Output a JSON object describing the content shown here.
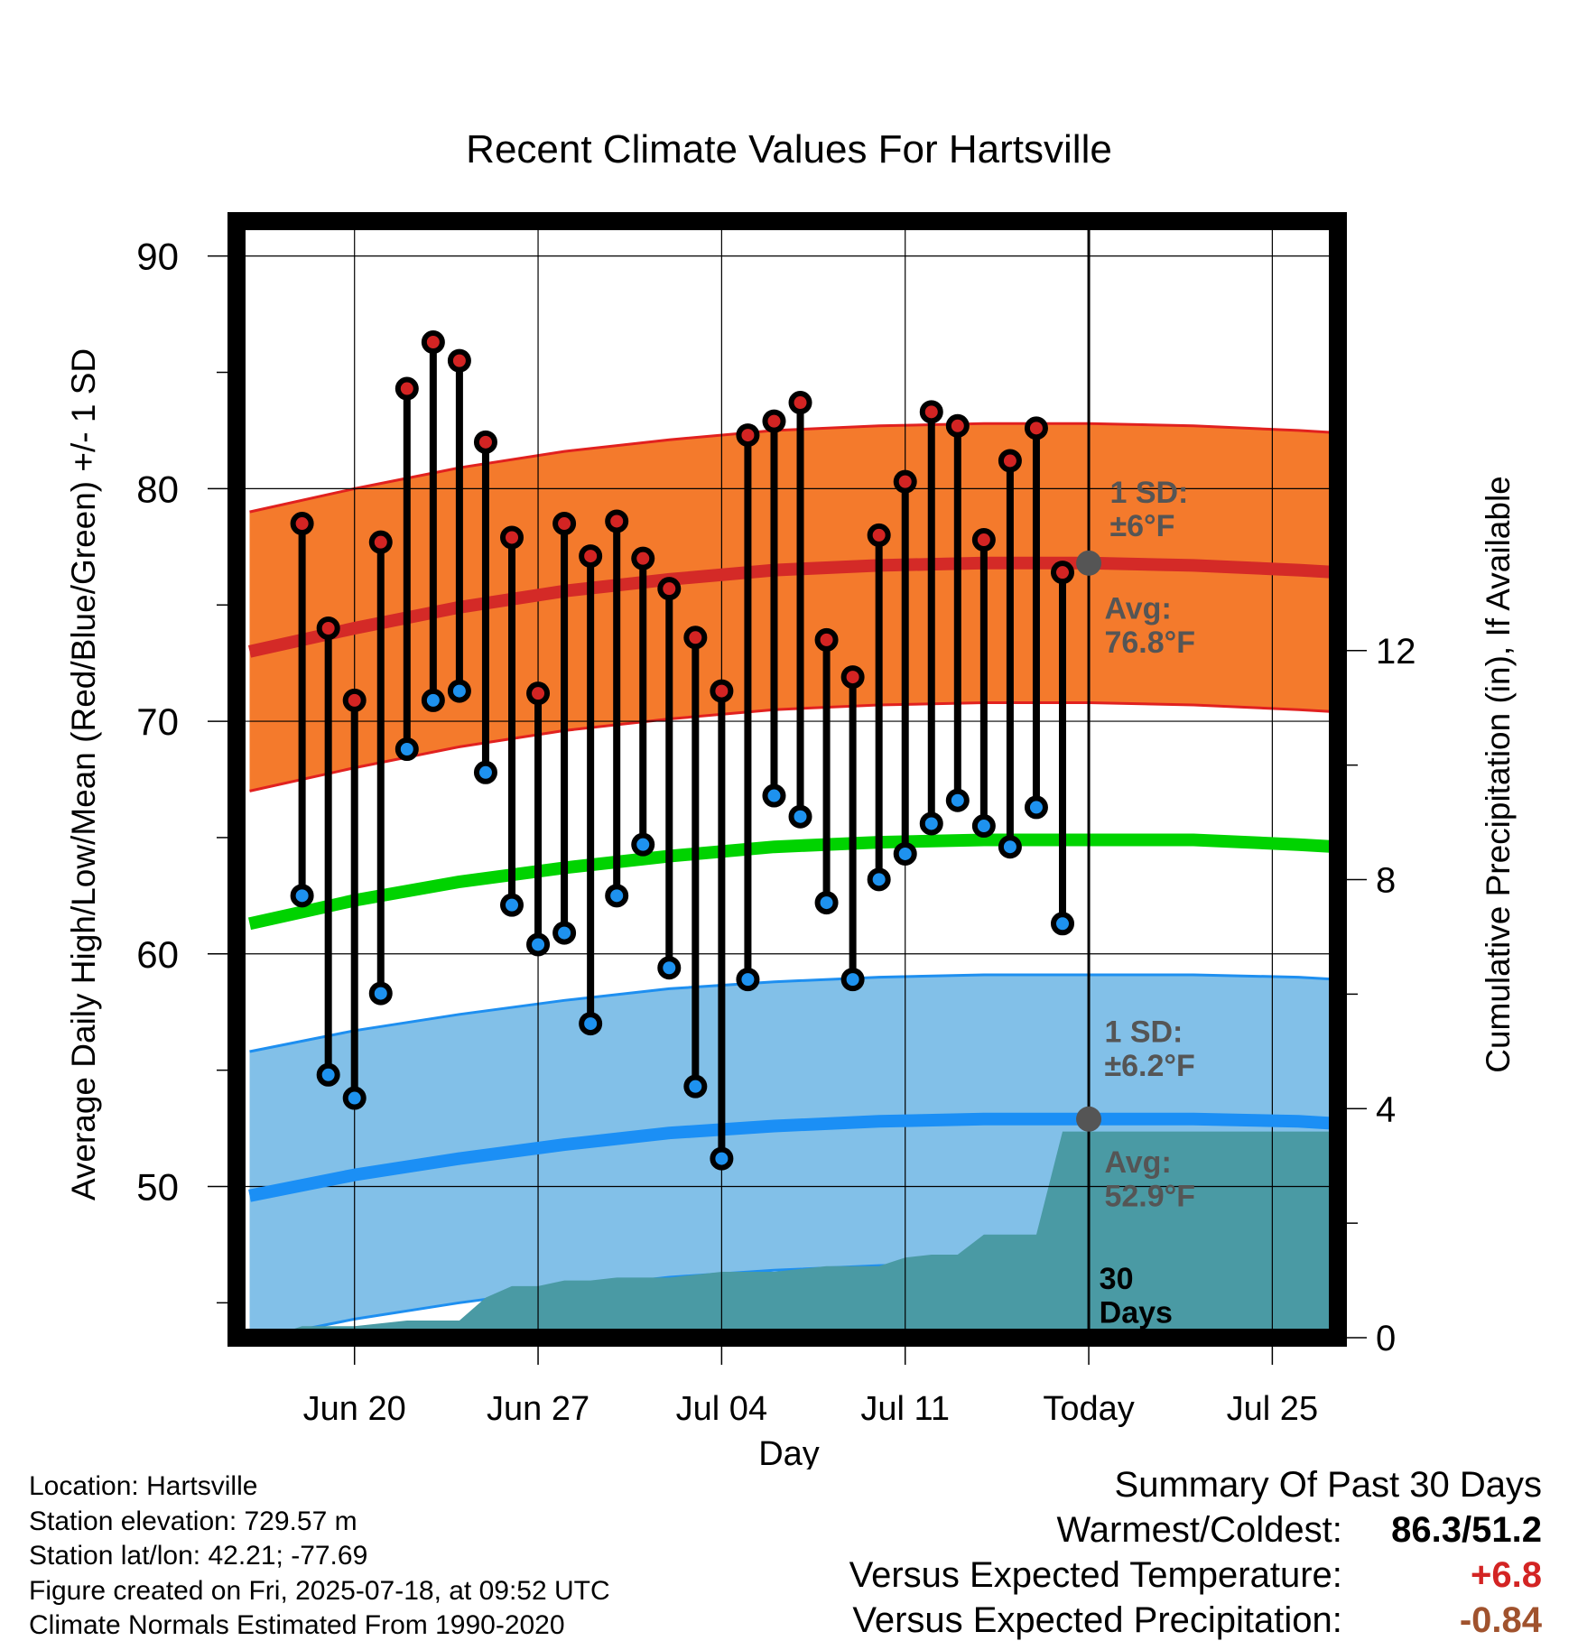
{
  "chart_data": {
    "type": "line",
    "title": "Recent Climate Values For Hartsville",
    "xlabel": "Day",
    "ylabel": "Average Daily High/Low/Mean (Red/Blue/Green) +/- 1 SD",
    "ylabel_right": "Cumulative Precipitation (in), If Available",
    "ylim": [
      43.5,
      91.5
    ],
    "y2lim": [
      0,
      19.5
    ],
    "yticks": [
      50,
      60,
      70,
      80,
      90
    ],
    "y2ticks": [
      0,
      4,
      8,
      12
    ],
    "grid": true,
    "x_range_days": [
      -32.5,
      9.5
    ],
    "xticks": [
      {
        "day": -28,
        "label": "Jun 20"
      },
      {
        "day": -21,
        "label": "Jun 27"
      },
      {
        "day": -14,
        "label": "Jul 04"
      },
      {
        "day": -7,
        "label": "Jul 11"
      },
      {
        "day": 0,
        "label": "Today"
      },
      {
        "day": 7,
        "label": "Jul 25"
      }
    ],
    "daily_high": [
      78.5,
      74.0,
      70.9,
      77.7,
      84.3,
      86.3,
      85.5,
      82.0,
      77.9,
      71.2,
      78.5,
      77.1,
      78.6,
      77.0,
      75.7,
      73.6,
      71.3,
      82.3,
      82.9,
      83.7,
      73.5,
      71.9,
      78.0,
      80.3,
      83.3,
      82.7,
      77.8,
      81.2,
      82.6,
      76.4
    ],
    "daily_low": [
      62.5,
      54.8,
      53.8,
      58.3,
      68.8,
      70.9,
      71.3,
      67.8,
      62.1,
      60.4,
      60.9,
      57.0,
      62.5,
      64.7,
      59.4,
      54.3,
      51.2,
      58.9,
      66.8,
      65.9,
      62.2,
      58.9,
      63.2,
      64.3,
      65.6,
      66.6,
      65.5,
      64.6,
      66.3,
      61.3
    ],
    "normal_high": {
      "days": [
        -32,
        -28,
        -24,
        -20,
        -16,
        -12,
        -8,
        -4,
        0,
        4,
        8,
        9.5
      ],
      "mean": [
        73.0,
        74.0,
        74.9,
        75.6,
        76.1,
        76.5,
        76.7,
        76.8,
        76.8,
        76.7,
        76.5,
        76.4
      ],
      "sd": 6.0
    },
    "normal_low": {
      "days": [
        -32,
        -28,
        -24,
        -20,
        -16,
        -12,
        -8,
        -4,
        0,
        4,
        8,
        9.5
      ],
      "mean": [
        49.6,
        50.5,
        51.2,
        51.8,
        52.3,
        52.6,
        52.8,
        52.9,
        52.9,
        52.9,
        52.8,
        52.7
      ],
      "sd": 6.2
    },
    "normal_mean": {
      "days": [
        -32,
        -28,
        -24,
        -20,
        -16,
        -12,
        -8,
        -4,
        0,
        4,
        8,
        9.5
      ],
      "values": [
        61.3,
        62.3,
        63.1,
        63.7,
        64.2,
        64.6,
        64.8,
        64.9,
        64.9,
        64.9,
        64.7,
        64.6
      ]
    },
    "precipitation_cumulative": {
      "days": [
        -32,
        -31,
        -30,
        -29,
        -28,
        -27,
        -26,
        -25,
        -24,
        -23,
        -22,
        -21,
        -20,
        -19,
        -18,
        -17,
        -16,
        -15,
        -14,
        -13,
        -12,
        -11,
        -10,
        -9,
        -8,
        -7,
        -6,
        -5,
        -4,
        -3,
        -2,
        -1,
        0,
        9.5
      ],
      "values": [
        0.0,
        0.05,
        0.2,
        0.2,
        0.2,
        0.25,
        0.3,
        0.3,
        0.3,
        0.7,
        0.9,
        0.9,
        1.0,
        1.0,
        1.05,
        1.05,
        1.05,
        1.1,
        1.15,
        1.15,
        1.15,
        1.2,
        1.25,
        1.25,
        1.25,
        1.4,
        1.45,
        1.45,
        1.8,
        1.8,
        1.8,
        3.6,
        3.6,
        3.6
      ]
    },
    "annotations": {
      "high_sd": "1 SD:\n±6°F",
      "high_avg": "Avg:\n76.8°F",
      "low_sd": "1 SD:\n±6.2°F",
      "low_avg": "Avg:\n52.9°F",
      "days_label": "30\nDays"
    },
    "colors": {
      "high_band": "#f47a2c",
      "high_band_edge": "#e1211f",
      "high_mean": "#d42a27",
      "low_band": "#82c0e8",
      "low_band_edge": "#1e8ff0",
      "low_mean": "#1b8ff5",
      "mean_line": "#00d300",
      "precip": "#4a9aa4",
      "high_dot": "#d32423",
      "low_dot": "#1e92ef",
      "annotation_text": "#555555"
    }
  },
  "footer": {
    "location": "Location: Hartsville",
    "elevation": "Station elevation: 729.57 m",
    "latlon": "Station lat/lon: 42.21; -77.69",
    "created": "Figure created on Fri, 2025-07-18, at 09:52 UTC",
    "normals": "Climate Normals Estimated From 1990-2020"
  },
  "summary": {
    "title": "Summary Of Past 30 Days",
    "warm_cold_label": "Warmest/Coldest:",
    "warm_cold_value": "86.3/51.2",
    "temp_label": "Versus Expected Temperature:",
    "temp_value": "+6.8",
    "temp_color": "#d32423",
    "precip_label": "Versus Expected Precipitation:",
    "precip_value": "-0.84",
    "precip_color": "#a0522d"
  }
}
